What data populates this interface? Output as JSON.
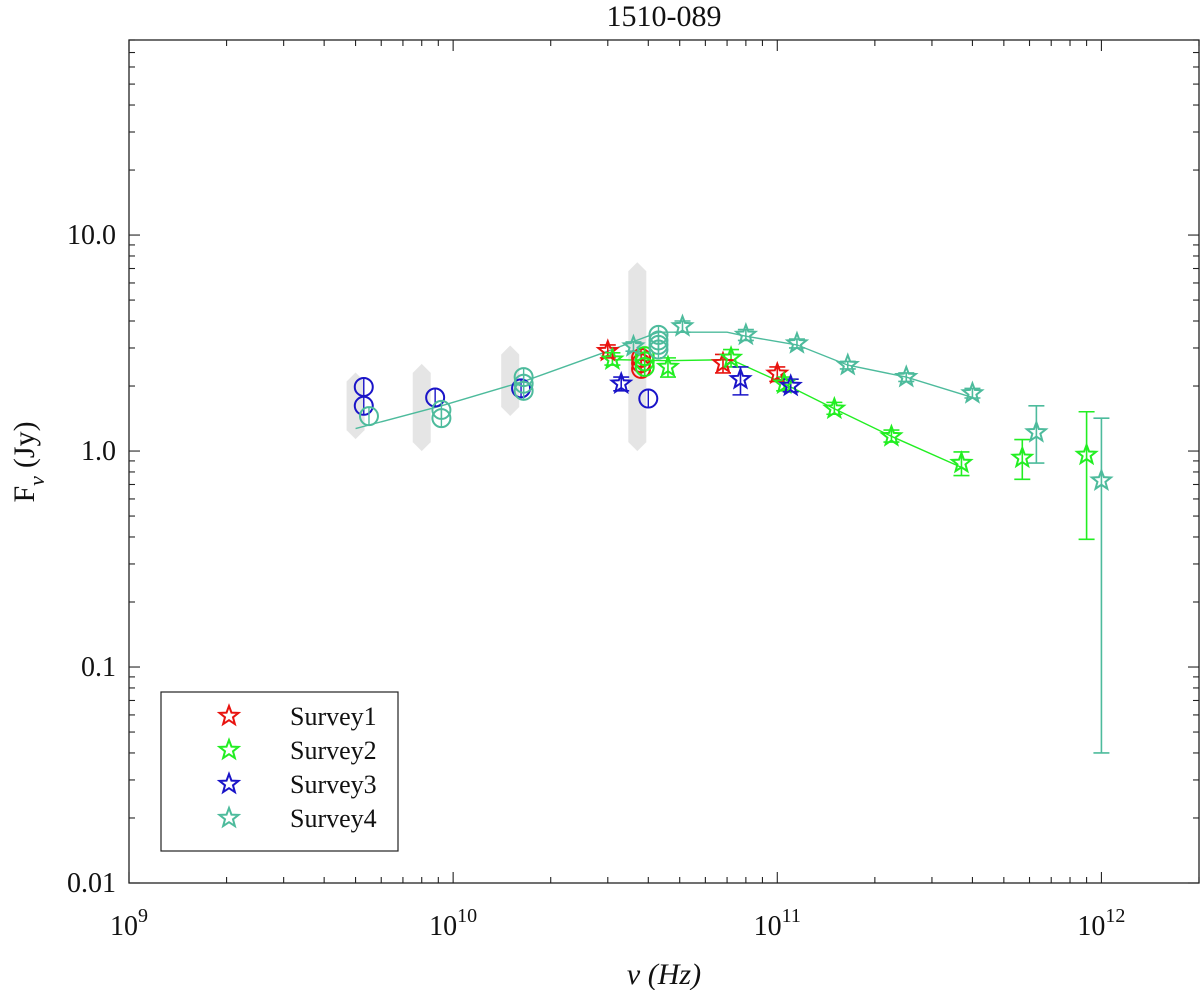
{
  "chart_data": {
    "type": "scatter",
    "title": "1510-089",
    "xlabel": "ν (Hz)",
    "ylabel_main": "F",
    "ylabel_sub": "ν",
    "ylabel_unit": "(Jy)",
    "xscale": "log",
    "yscale": "log",
    "xlim": [
      1000000000.0,
      2000000000000.0
    ],
    "ylim": [
      0.01,
      80
    ],
    "x_ticks": [
      {
        "value": 1000000000.0,
        "base": "10",
        "exp": "9"
      },
      {
        "value": 10000000000.0,
        "base": "10",
        "exp": "10"
      },
      {
        "value": 100000000000.0,
        "base": "10",
        "exp": "11"
      },
      {
        "value": 1000000000000.0,
        "base": "10",
        "exp": "12"
      }
    ],
    "y_ticks": [
      {
        "value": 0.01,
        "label": "0.01"
      },
      {
        "value": 0.1,
        "label": "0.1"
      },
      {
        "value": 1,
        "label": "1.0"
      },
      {
        "value": 10,
        "label": "10.0"
      }
    ],
    "legend_position": "bottom-left",
    "background_ranges": [
      {
        "x": 5000000000.0,
        "low": 1.25,
        "high": 2.1
      },
      {
        "x": 8000000000.0,
        "low": 1.1,
        "high": 2.3
      },
      {
        "x": 15000000000.0,
        "low": 1.6,
        "high": 2.8
      },
      {
        "x": 37000000000.0,
        "low": 1.1,
        "high": 6.8
      }
    ],
    "series": [
      {
        "name": "Survey1",
        "color": "#e8130f",
        "stars": [
          {
            "x": 30000000000.0,
            "y": 2.9,
            "lo": 2.7,
            "hi": 3.1
          },
          {
            "x": 68000000000.0,
            "y": 2.55,
            "lo": 2.3,
            "hi": 2.8
          },
          {
            "x": 100000000000.0,
            "y": 2.28,
            "lo": 2.1,
            "hi": 2.45
          }
        ],
        "circles": [
          {
            "x": 38000000000.0,
            "y": 2.4
          },
          {
            "x": 38000000000.0,
            "y": 2.55
          },
          {
            "x": 38000000000.0,
            "y": 2.7
          }
        ],
        "line": []
      },
      {
        "name": "Survey2",
        "color": "#22ee22",
        "stars": [
          {
            "x": 31000000000.0,
            "y": 2.65,
            "lo": 2.5,
            "hi": 2.85
          },
          {
            "x": 46000000000.0,
            "y": 2.45,
            "lo": 2.2,
            "hi": 2.7
          },
          {
            "x": 72000000000.0,
            "y": 2.7,
            "lo": 2.45,
            "hi": 2.95
          },
          {
            "x": 105000000000.0,
            "y": 2.05,
            "lo": 1.9,
            "hi": 2.2
          },
          {
            "x": 150000000000.0,
            "y": 1.57,
            "lo": 1.48,
            "hi": 1.68
          },
          {
            "x": 225000000000.0,
            "y": 1.17,
            "lo": 1.1,
            "hi": 1.25
          },
          {
            "x": 370000000000.0,
            "y": 0.88,
            "lo": 0.77,
            "hi": 0.99
          },
          {
            "x": 570000000000.0,
            "y": 0.93,
            "lo": 0.74,
            "hi": 1.13
          },
          {
            "x": 900000000000.0,
            "y": 0.96,
            "lo": 0.39,
            "hi": 1.52
          }
        ],
        "circles": [
          {
            "x": 39000000000.0,
            "y": 2.45
          },
          {
            "x": 39000000000.0,
            "y": 2.6
          },
          {
            "x": 39000000000.0,
            "y": 2.75
          }
        ],
        "line": [
          {
            "x": 31000000000.0,
            "y": 2.65
          },
          {
            "x": 46000000000.0,
            "y": 2.62
          },
          {
            "x": 72000000000.0,
            "y": 2.65
          },
          {
            "x": 105000000000.0,
            "y": 2.05
          },
          {
            "x": 150000000000.0,
            "y": 1.57
          },
          {
            "x": 225000000000.0,
            "y": 1.17
          },
          {
            "x": 370000000000.0,
            "y": 0.84
          }
        ]
      },
      {
        "name": "Survey3",
        "color": "#1a14c8",
        "stars": [
          {
            "x": 33000000000.0,
            "y": 2.05,
            "lo": 1.9,
            "hi": 2.2
          },
          {
            "x": 77000000000.0,
            "y": 2.15,
            "lo": 1.82,
            "hi": 2.45
          },
          {
            "x": 110000000000.0,
            "y": 2.0,
            "lo": 1.88,
            "hi": 2.15
          }
        ],
        "circles": [
          {
            "x": 5300000000.0,
            "y": 1.98
          },
          {
            "x": 5300000000.0,
            "y": 1.62
          },
          {
            "x": 8800000000.0,
            "y": 1.77
          },
          {
            "x": 16200000000.0,
            "y": 1.95
          },
          {
            "x": 40000000000.0,
            "y": 1.75
          }
        ],
        "line": []
      },
      {
        "name": "Survey4",
        "color": "#4dbb9c",
        "stars": [
          {
            "x": 36000000000.0,
            "y": 3.05,
            "lo": 2.9,
            "hi": 3.2
          },
          {
            "x": 51000000000.0,
            "y": 3.78,
            "lo": 3.55,
            "hi": 4.0
          },
          {
            "x": 80000000000.0,
            "y": 3.45,
            "lo": 3.25,
            "hi": 3.65
          },
          {
            "x": 115000000000.0,
            "y": 3.15,
            "lo": 3.0,
            "hi": 3.3
          },
          {
            "x": 165000000000.0,
            "y": 2.5,
            "lo": 2.4,
            "hi": 2.6
          },
          {
            "x": 250000000000.0,
            "y": 2.2,
            "lo": 2.1,
            "hi": 2.3
          },
          {
            "x": 400000000000.0,
            "y": 1.85,
            "lo": 1.76,
            "hi": 1.95
          },
          {
            "x": 630000000000.0,
            "y": 1.22,
            "lo": 0.88,
            "hi": 1.62
          },
          {
            "x": 1000000000000.0,
            "y": 0.73,
            "lo": 0.04,
            "hi": 1.42
          }
        ],
        "circles": [
          {
            "x": 5500000000.0,
            "y": 1.45
          },
          {
            "x": 9200000000.0,
            "y": 1.55
          },
          {
            "x": 9200000000.0,
            "y": 1.42
          },
          {
            "x": 16500000000.0,
            "y": 2.2
          },
          {
            "x": 16500000000.0,
            "y": 2.05
          },
          {
            "x": 16500000000.0,
            "y": 1.9
          },
          {
            "x": 43000000000.0,
            "y": 3.45
          },
          {
            "x": 43000000000.0,
            "y": 3.25
          },
          {
            "x": 43000000000.0,
            "y": 3.1
          },
          {
            "x": 43000000000.0,
            "y": 2.95
          }
        ],
        "line": [
          {
            "x": 5000000000.0,
            "y": 1.27
          },
          {
            "x": 9200000000.0,
            "y": 1.62
          },
          {
            "x": 16500000000.0,
            "y": 2.1
          },
          {
            "x": 30000000000.0,
            "y": 2.9
          },
          {
            "x": 43000000000.0,
            "y": 3.55
          },
          {
            "x": 70000000000.0,
            "y": 3.55
          },
          {
            "x": 80000000000.0,
            "y": 3.4
          },
          {
            "x": 115000000000.0,
            "y": 3.1
          },
          {
            "x": 165000000000.0,
            "y": 2.5
          },
          {
            "x": 250000000000.0,
            "y": 2.2
          },
          {
            "x": 400000000000.0,
            "y": 1.77
          }
        ]
      }
    ]
  }
}
